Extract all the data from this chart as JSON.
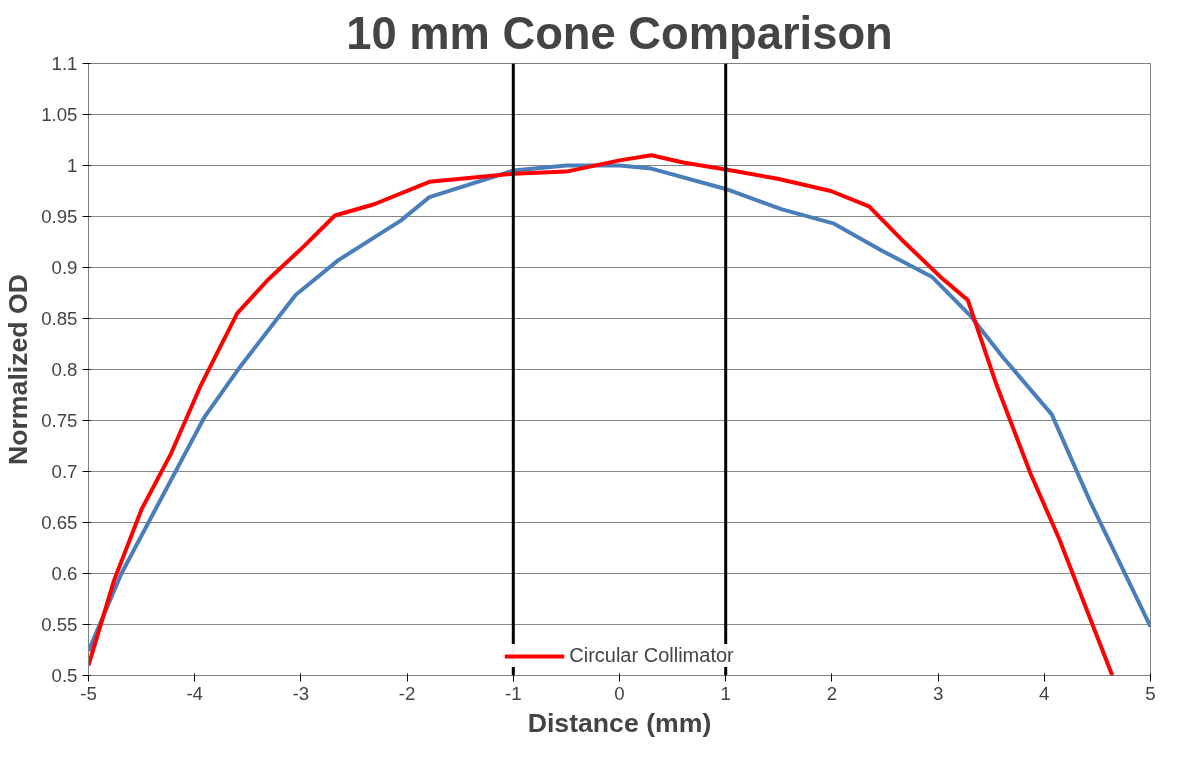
{
  "chart_data": {
    "type": "line",
    "title": "10 mm Cone Comparison",
    "xlabel": "Distance (mm)",
    "ylabel": "Normalized OD",
    "xlim": [
      -5,
      5
    ],
    "xticks": [
      -5,
      -4,
      -3,
      -2,
      -1,
      0,
      1,
      2,
      3,
      4,
      5
    ],
    "ylim": [
      0.5,
      1.1
    ],
    "yticks": [
      0.5,
      0.55,
      0.6,
      0.65,
      0.7,
      0.75,
      0.8,
      0.85,
      0.9,
      0.95,
      1,
      1.05,
      1.1
    ],
    "grid": "y",
    "legend": "bottom",
    "marker": "none",
    "line_style": "solid",
    "ref_lines": [
      {
        "axis": "x",
        "value": -1,
        "color": "#000000"
      },
      {
        "axis": "x",
        "value": 1,
        "color": "#000000"
      }
    ],
    "series": [
      {
        "color": "#4a7ebb",
        "x": [
          -5,
          -4.69,
          -3.91,
          -3.57,
          -3.05,
          -2.65,
          -2.06,
          -1.79,
          -1,
          -0.5,
          0,
          0.3,
          1,
          1.53,
          2.02,
          2.48,
          2.94,
          3.31,
          3.61,
          4.07,
          4.43,
          5
        ],
        "values": [
          0.524,
          0.6,
          0.753,
          0.803,
          0.873,
          0.907,
          0.946,
          0.969,
          0.995,
          1.0,
          1.0,
          0.997,
          0.977,
          0.957,
          0.943,
          0.916,
          0.891,
          0.852,
          0.812,
          0.756,
          0.671,
          0.548
        ]
      },
      {
        "name": "Circular Collimator",
        "color": "#ff0000",
        "x": [
          -5,
          -4.76,
          -4.5,
          -4.23,
          -3.94,
          -3.6,
          -3.31,
          -2.98,
          -2.68,
          -2.31,
          -1.79,
          -1,
          -0.5,
          0,
          0.3,
          0.6,
          1,
          1.49,
          1.99,
          2.35,
          2.65,
          3.02,
          3.28,
          3.55,
          3.87,
          4.14,
          4.64
        ],
        "values": [
          0.51,
          0.593,
          0.663,
          0.716,
          0.785,
          0.855,
          0.888,
          0.92,
          0.951,
          0.962,
          0.984,
          0.992,
          0.994,
          1.005,
          1.01,
          1.003,
          0.996,
          0.987,
          0.975,
          0.96,
          0.928,
          0.891,
          0.868,
          0.785,
          0.698,
          0.634,
          0.5
        ]
      }
    ]
  }
}
